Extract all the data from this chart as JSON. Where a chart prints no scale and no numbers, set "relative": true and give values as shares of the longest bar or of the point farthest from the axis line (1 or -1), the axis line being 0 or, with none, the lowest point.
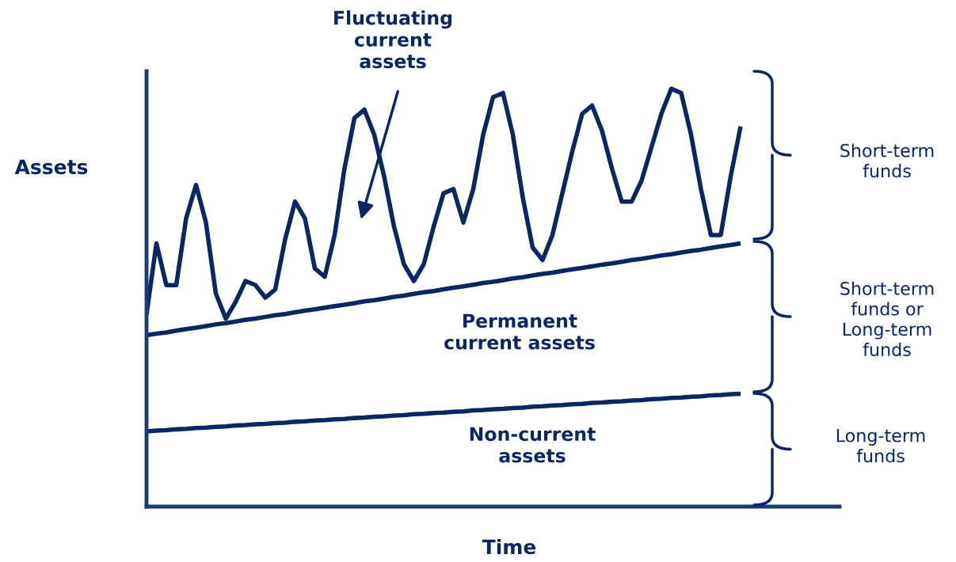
{
  "chart_data": {
    "type": "line",
    "relative": true,
    "xlabel": "Time",
    "ylabel": "Assets",
    "line_style": "solid",
    "categories": [
      null,
      null,
      null,
      null,
      null,
      null,
      null,
      null,
      null,
      null,
      null,
      null,
      null,
      null,
      null,
      null,
      null,
      null,
      null,
      null,
      null,
      null,
      null,
      null,
      null,
      null,
      null,
      null,
      null,
      null,
      null,
      null,
      null,
      null,
      null,
      null,
      null,
      null,
      null,
      null,
      null,
      null,
      null,
      null,
      null,
      null,
      null,
      null,
      null,
      null,
      null,
      null,
      null,
      null,
      null,
      null,
      null,
      null,
      null,
      null,
      null,
      null,
      null,
      null,
      null,
      null,
      null,
      null,
      null,
      null,
      null
    ],
    "series": [
      {
        "color": "#0b2662",
        "values": [
          0.46,
          0.63,
          0.53,
          0.53,
          0.69,
          0.77,
          0.68,
          0.51,
          0.45,
          0.49,
          0.54,
          0.53,
          0.5,
          0.52,
          0.64,
          0.73,
          0.69,
          0.57,
          0.55,
          0.65,
          0.81,
          0.93,
          0.95,
          0.89,
          0.79,
          0.67,
          0.58,
          0.54,
          0.58,
          0.67,
          0.75,
          0.76,
          0.68,
          0.76,
          0.89,
          0.98,
          0.99,
          0.89,
          0.74,
          0.62,
          0.59,
          0.65,
          0.75,
          0.85,
          0.94,
          0.96,
          0.9,
          0.81,
          0.73,
          0.73,
          0.78,
          0.86,
          0.94,
          1.0,
          0.99,
          0.89,
          0.76,
          0.65,
          0.65,
          0.79,
          0.91,
          null,
          null,
          null,
          null,
          null,
          null,
          null,
          null,
          null,
          null
        ]
      },
      {
        "color": "#0b2662",
        "values": [
          0.41,
          0.414,
          0.417,
          0.421,
          0.425,
          0.428,
          0.432,
          0.436,
          0.439,
          0.443,
          0.447,
          0.45,
          0.454,
          0.458,
          0.461,
          0.465,
          0.469,
          0.472,
          0.476,
          0.48,
          0.483,
          0.487,
          0.491,
          0.494,
          0.498,
          0.502,
          0.505,
          0.509,
          0.513,
          0.516,
          0.52,
          0.524,
          0.527,
          0.531,
          0.535,
          0.538,
          0.542,
          0.546,
          0.549,
          0.553,
          0.557,
          0.56,
          0.564,
          0.568,
          0.571,
          0.575,
          0.579,
          0.582,
          0.586,
          0.59,
          0.593,
          0.597,
          0.601,
          0.604,
          0.608,
          0.612,
          0.615,
          0.619,
          0.623,
          0.626,
          0.63,
          null,
          null,
          null,
          null,
          null,
          null,
          null,
          null,
          null,
          null
        ]
      },
      {
        "color": "#0b2662",
        "values": [
          0.18,
          0.182,
          0.183,
          0.185,
          0.186,
          0.188,
          0.189,
          0.191,
          0.192,
          0.194,
          0.195,
          0.197,
          0.198,
          0.2,
          0.201,
          0.203,
          0.204,
          0.206,
          0.207,
          0.209,
          0.21,
          0.212,
          0.213,
          0.215,
          0.216,
          0.218,
          0.219,
          0.221,
          0.222,
          0.224,
          0.225,
          0.227,
          0.228,
          0.23,
          0.231,
          0.233,
          0.234,
          0.236,
          0.237,
          0.239,
          0.24,
          0.242,
          0.243,
          0.245,
          0.246,
          0.248,
          0.249,
          0.251,
          0.252,
          0.254,
          0.255,
          0.257,
          0.258,
          0.26,
          0.261,
          0.263,
          0.264,
          0.266,
          0.267,
          0.269,
          0.27,
          null,
          null,
          null,
          null,
          null,
          null,
          null,
          null,
          null,
          null
        ]
      }
    ],
    "annotations": [
      "Fluctuating\ncurrent\nassets",
      "Permanent\ncurrent assets",
      "Non-current\nassets",
      "Short-term\nfunds",
      "Short-term\nfunds or\nLong-term\nfunds",
      "Long-term\nfunds"
    ]
  }
}
